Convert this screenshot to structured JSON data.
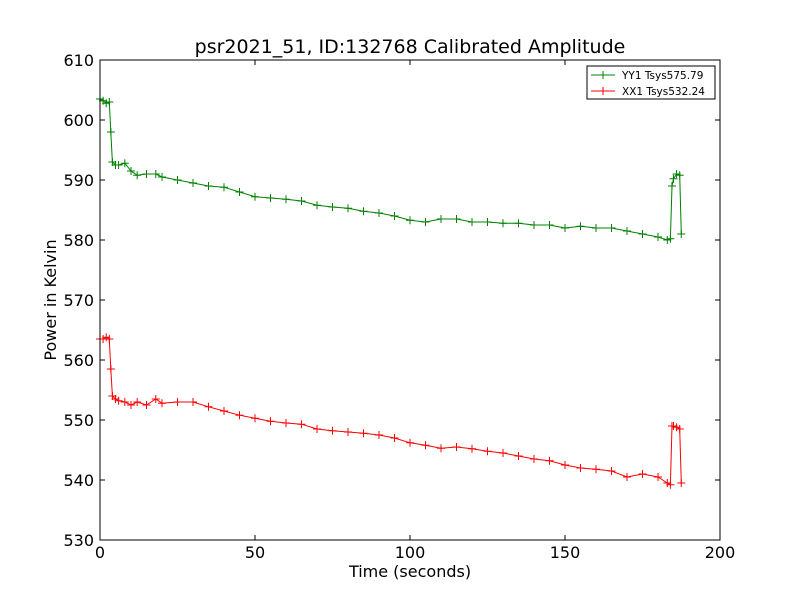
{
  "chart_data": {
    "type": "line",
    "title": "psr2021_51, ID:132768 Calibrated Amplitude",
    "xlabel": "Time (seconds)",
    "ylabel": "Power in Kelvin",
    "xlim": [
      0,
      200
    ],
    "ylim": [
      530,
      610
    ],
    "xticks": [
      0,
      50,
      100,
      150,
      200
    ],
    "yticks": [
      530,
      540,
      550,
      560,
      570,
      580,
      590,
      600,
      610
    ],
    "grid": false,
    "legend_position": "top-right",
    "marker": "plus",
    "series": [
      {
        "name": "YY1 Tsys575.79",
        "color": "#008000",
        "x": [
          0,
          1,
          2,
          3,
          3.5,
          4,
          5,
          6,
          8,
          10,
          12,
          15,
          18,
          20,
          25,
          30,
          35,
          40,
          45,
          50,
          55,
          60,
          65,
          70,
          75,
          80,
          85,
          90,
          95,
          100,
          105,
          110,
          115,
          120,
          125,
          130,
          135,
          140,
          145,
          150,
          155,
          160,
          165,
          170,
          175,
          180,
          183,
          184,
          184.5,
          185,
          186,
          187,
          187.5
        ],
        "y": [
          603.5,
          603.2,
          602.8,
          603,
          598,
          593,
          592.5,
          592.5,
          592.8,
          591.5,
          590.8,
          591,
          591,
          590.5,
          590,
          589.5,
          589,
          588.8,
          588,
          587.2,
          587,
          586.8,
          586.5,
          585.8,
          585.5,
          585.3,
          584.8,
          584.5,
          584,
          583.3,
          583,
          583.5,
          583.5,
          583,
          583,
          582.8,
          582.8,
          582.5,
          582.5,
          582,
          582.3,
          582,
          582,
          581.5,
          581,
          580.5,
          580,
          580.2,
          589,
          590.2,
          591,
          590.8,
          581
        ]
      },
      {
        "name": "XX1 Tsys532.24",
        "color": "#ff0000",
        "x": [
          0,
          1,
          2,
          3,
          3.5,
          4,
          5,
          6,
          8,
          10,
          12,
          15,
          18,
          20,
          25,
          30,
          35,
          40,
          45,
          50,
          55,
          60,
          65,
          70,
          75,
          80,
          85,
          90,
          95,
          100,
          105,
          110,
          115,
          120,
          125,
          130,
          135,
          140,
          145,
          150,
          155,
          160,
          165,
          170,
          175,
          180,
          183,
          184,
          184.5,
          185,
          186,
          187,
          187.5
        ],
        "y": [
          563.5,
          563.5,
          563.8,
          563.5,
          558.5,
          554,
          553.5,
          553.2,
          553,
          552.5,
          553,
          552.5,
          553.5,
          552.8,
          553,
          553,
          552.2,
          551.5,
          550.8,
          550.3,
          549.8,
          549.5,
          549.3,
          548.5,
          548.2,
          548,
          547.8,
          547.5,
          547,
          546.2,
          545.8,
          545.3,
          545.5,
          545.2,
          544.8,
          544.5,
          544,
          543.5,
          543.2,
          542.5,
          542,
          541.8,
          541.5,
          540.5,
          541,
          540.5,
          539.5,
          539.2,
          549,
          549,
          548.8,
          548.5,
          539.5
        ]
      }
    ]
  }
}
